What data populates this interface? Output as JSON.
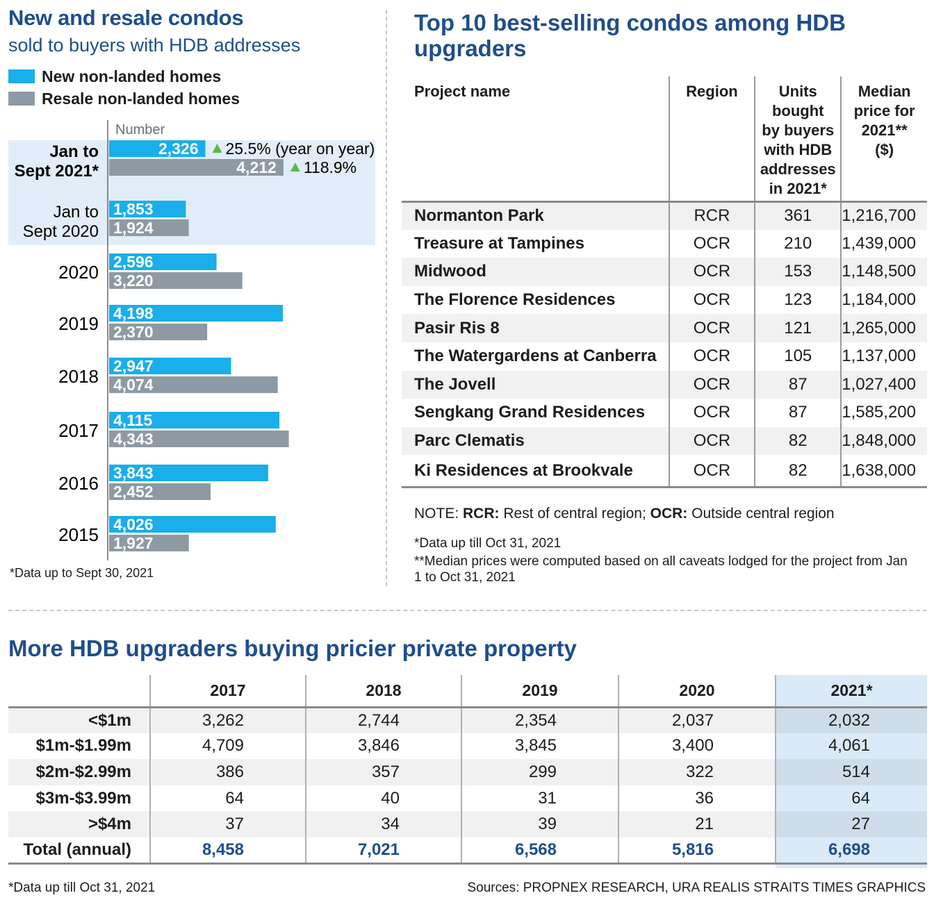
{
  "left": {
    "title": "New and resale condos",
    "subtitle": "sold to buyers with HDB addresses",
    "legend_new": "New non-landed homes",
    "legend_resale": "Resale non-landed homes",
    "footnote": "*Data up to Sept 30, 2021",
    "colors": {
      "new": "#1aaeea",
      "resale": "#8e9aa3",
      "highlight": "#e1eef9",
      "arrow": "#5fb84a"
    }
  },
  "chart_data": {
    "type": "bar",
    "orientation": "horizontal",
    "ylabel": "Number",
    "categories": [
      "Jan to Sept 2021*",
      "Jan to Sept 2020",
      "2020",
      "2019",
      "2018",
      "2017",
      "2016",
      "2015"
    ],
    "highlighted_categories": [
      "Jan to Sept 2021*",
      "Jan to Sept 2020"
    ],
    "series": [
      {
        "name": "New non-landed homes",
        "values": [
          2326,
          1853,
          2596,
          4198,
          2947,
          4115,
          3843,
          4026
        ]
      },
      {
        "name": "Resale non-landed homes",
        "values": [
          4212,
          1924,
          3220,
          2370,
          4074,
          4343,
          2452,
          1927
        ]
      }
    ],
    "annotations": [
      {
        "category": "Jan to Sept 2021*",
        "series": "New non-landed homes",
        "text": "25.5% (year on year)"
      },
      {
        "category": "Jan to Sept 2021*",
        "series": "Resale non-landed homes",
        "text": "118.9%"
      }
    ]
  },
  "top10": {
    "title": "Top 10 best-selling condos among HDB upgraders",
    "headers": {
      "name": "Project name",
      "region": "Region",
      "units_lines": [
        "Units",
        "bought",
        "by buyers",
        "with HDB",
        "addresses",
        "in 2021*"
      ],
      "price_lines": [
        "Median",
        "price for",
        "2021**",
        "($)"
      ]
    },
    "rows": [
      {
        "name": "Normanton Park",
        "region": "RCR",
        "units": "361",
        "price": "1,216,700"
      },
      {
        "name": "Treasure at Tampines",
        "region": "OCR",
        "units": "210",
        "price": "1,439,000"
      },
      {
        "name": "Midwood",
        "region": "OCR",
        "units": "153",
        "price": "1,148,500"
      },
      {
        "name": "The Florence Residences",
        "region": "OCR",
        "units": "123",
        "price": "1,184,000"
      },
      {
        "name": "Pasir Ris 8",
        "region": "OCR",
        "units": "121",
        "price": "1,265,000"
      },
      {
        "name": "The Watergardens at Canberra",
        "region": "OCR",
        "units": "105",
        "price": "1,137,000"
      },
      {
        "name": "The Jovell",
        "region": "OCR",
        "units": "87",
        "price": "1,027,400"
      },
      {
        "name": "Sengkang Grand Residences",
        "region": "OCR",
        "units": "87",
        "price": "1,585,200"
      },
      {
        "name": "Parc Clematis",
        "region": "OCR",
        "units": "82",
        "price": "1,848,000"
      },
      {
        "name": "Ki Residences at Brookvale",
        "region": "OCR",
        "units": "82",
        "price": "1,638,000"
      }
    ],
    "note_prefix": "NOTE: ",
    "note_rcr_key": "RCR:",
    "note_rcr_text": " Rest of central region; ",
    "note_ocr_key": "OCR:",
    "note_ocr_text": " Outside central region",
    "footnote1": "*Data up till Oct 31, 2021",
    "footnote2": "**Median prices were computed based on all caveats lodged for the project from Jan 1 to Oct 31, 2021"
  },
  "bottom": {
    "title": "More HDB upgraders buying pricier private property",
    "columns": [
      "2017",
      "2018",
      "2019",
      "2020",
      "2021*"
    ],
    "rows": [
      {
        "label": "<$1m",
        "values": [
          "3,262",
          "2,744",
          "2,354",
          "2,037",
          "2,032"
        ]
      },
      {
        "label": "$1m-$1.99m",
        "values": [
          "4,709",
          "3,846",
          "3,845",
          "3,400",
          "4,061"
        ]
      },
      {
        "label": "$2m-$2.99m",
        "values": [
          "386",
          "357",
          "299",
          "322",
          "514"
        ]
      },
      {
        "label": "$3m-$3.99m",
        "values": [
          "64",
          "40",
          "31",
          "36",
          "64"
        ]
      },
      {
        "label": ">$4m",
        "values": [
          "37",
          "34",
          "39",
          "21",
          "27"
        ]
      }
    ],
    "total": {
      "label": "Total (annual)",
      "values": [
        "8,458",
        "7,021",
        "6,568",
        "5,816",
        "6,698"
      ]
    },
    "footnote": "*Data up till Oct 31, 2021",
    "sources": "Sources: PROPNEX RESEARCH, URA REALIS  STRAITS TIMES GRAPHICS"
  }
}
